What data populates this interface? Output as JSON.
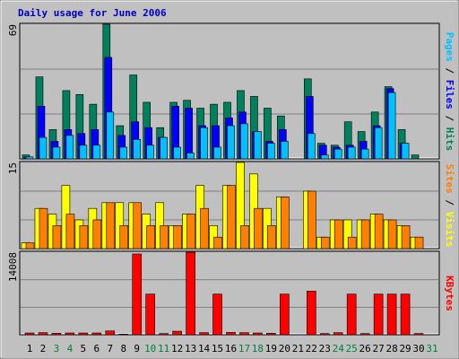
{
  "title": "Daily usage for June 2006",
  "legend_separator": " / ",
  "chart_data": [
    {
      "type": "bar",
      "ylim": [
        0,
        69
      ],
      "yticks": [
        69
      ],
      "series": [
        {
          "name": "Hits",
          "color": "#00805c",
          "values": [
            2,
            42,
            15,
            35,
            33,
            28,
            69,
            17,
            43,
            29,
            16,
            29,
            30,
            26,
            28,
            29,
            35,
            32,
            26,
            22,
            0,
            41,
            8,
            7,
            19,
            14,
            24,
            37,
            15,
            2,
            0
          ]
        },
        {
          "name": "Files",
          "color": "#0000ff",
          "values": [
            1,
            27,
            9,
            15,
            13,
            15,
            52,
            12,
            19,
            16,
            11,
            27,
            26,
            17,
            17,
            21,
            24,
            14,
            9,
            15,
            0,
            32,
            7,
            6,
            7,
            9,
            17,
            36,
            8,
            0,
            0
          ]
        },
        {
          "name": "Pages",
          "color": "#00c0ff",
          "values": [
            1,
            11,
            6,
            12,
            7,
            7,
            24,
            6,
            10,
            7,
            11,
            6,
            3,
            16,
            6,
            17,
            18,
            14,
            8,
            9,
            0,
            13,
            2,
            5,
            6,
            5,
            16,
            34,
            8,
            0,
            0
          ]
        }
      ]
    },
    {
      "type": "bar",
      "ylim": [
        0,
        15
      ],
      "yticks": [
        15
      ],
      "series": [
        {
          "name": "Visits",
          "color": "#ffff00",
          "values": [
            1,
            7,
            6,
            11,
            5,
            7,
            8,
            8,
            8,
            6,
            8,
            4,
            6,
            11,
            4,
            11,
            15,
            13,
            7,
            9,
            0,
            10,
            2,
            5,
            5,
            5,
            6,
            5,
            4,
            2,
            0
          ]
        },
        {
          "name": "Sites",
          "color": "#ff8000",
          "values": [
            1,
            7,
            4,
            6,
            4,
            5,
            8,
            4,
            8,
            4,
            4,
            4,
            6,
            7,
            2,
            11,
            4,
            7,
            4,
            9,
            0,
            10,
            2,
            5,
            2,
            5,
            6,
            5,
            4,
            2,
            0
          ]
        }
      ]
    },
    {
      "type": "bar",
      "ylim": [
        0,
        14008
      ],
      "yticks": [
        14008
      ],
      "categories": [
        "1",
        "2",
        "3",
        "4",
        "5",
        "6",
        "7",
        "8",
        "9",
        "10",
        "11",
        "12",
        "13",
        "14",
        "15",
        "16",
        "17",
        "18",
        "19",
        "20",
        "21",
        "22",
        "23",
        "24",
        "25",
        "26",
        "27",
        "28",
        "29",
        "30",
        "31"
      ],
      "category_colors": [
        "#000000",
        "#000000",
        "#008040",
        "#008040",
        "#000000",
        "#000000",
        "#000000",
        "#000000",
        "#000000",
        "#008040",
        "#008040",
        "#000000",
        "#000000",
        "#000000",
        "#000000",
        "#000000",
        "#008040",
        "#008040",
        "#000000",
        "#000000",
        "#000000",
        "#000000",
        "#000000",
        "#008040",
        "#008040",
        "#000000",
        "#000000",
        "#000000",
        "#000000",
        "#000000",
        "#008040"
      ],
      "series": [
        {
          "name": "KBytes",
          "color": "#ff0000",
          "values": [
            300,
            350,
            250,
            300,
            300,
            300,
            650,
            100,
            13700,
            6900,
            200,
            600,
            14008,
            350,
            6900,
            400,
            350,
            300,
            250,
            6900,
            0,
            7400,
            200,
            350,
            6900,
            200,
            6900,
            6900,
            6900,
            200,
            0
          ]
        }
      ]
    }
  ]
}
